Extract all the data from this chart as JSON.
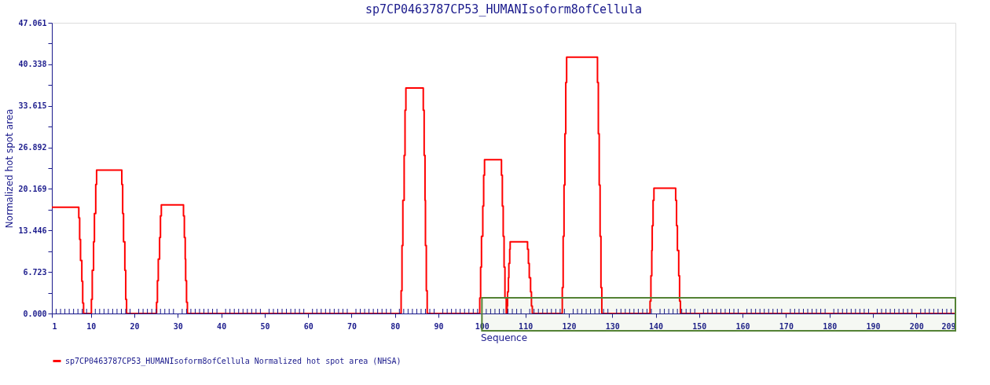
{
  "chart_data": {
    "type": "step",
    "title": "sp7CP0463787CP53_HUMANIsoform8ofCellula",
    "xlabel": "Sequence",
    "ylabel": "Normalized hot spot area",
    "series": [
      {
        "name": "sp7CP0463787CP53_HUMANIsoform8ofCellula Normalized hot spot area (NHSA)",
        "color": "#ff0000",
        "x": [
          1,
          7.2,
          7.4,
          7.6,
          7.9,
          8.1,
          8.3,
          10.1,
          10.3,
          10.6,
          10.8,
          11.1,
          11.3,
          17.1,
          17.3,
          17.5,
          17.8,
          18.0,
          18.2,
          25.1,
          25.3,
          25.5,
          25.8,
          26.0,
          26.2,
          31.3,
          31.5,
          31.7,
          31.8,
          32.0,
          32.2,
          81.4,
          81.6,
          81.8,
          82.1,
          82.3,
          82.5,
          86.5,
          86.7,
          86.9,
          87.0,
          87.2,
          87.4,
          99.5,
          99.7,
          99.9,
          100.2,
          100.4,
          100.6,
          104.5,
          104.7,
          104.9,
          105.1,
          105.3,
          105.6,
          105.8,
          105.9,
          106.1,
          106.2,
          106.4,
          106.5,
          110.5,
          110.7,
          110.9,
          111.2,
          111.4,
          111.6,
          118.5,
          118.7,
          118.9,
          119.1,
          119.3,
          119.5,
          126.6,
          126.8,
          127.0,
          127.2,
          127.4,
          127.6,
          138.7,
          138.9,
          139.1,
          139.2,
          139.4,
          139.6,
          144.6,
          144.8,
          145.0,
          145.3,
          145.5,
          145.7,
          209
        ],
        "values": [
          17.2,
          15.5,
          12.0,
          8.6,
          5.2,
          1.7,
          0,
          2.3,
          7.0,
          11.6,
          16.2,
          20.9,
          23.2,
          20.9,
          16.2,
          11.6,
          7.0,
          2.3,
          0,
          1.8,
          5.3,
          8.8,
          12.3,
          15.8,
          17.6,
          15.8,
          12.3,
          8.8,
          5.3,
          1.8,
          0,
          3.7,
          11.0,
          18.3,
          25.6,
          32.9,
          36.5,
          32.9,
          25.6,
          18.3,
          11.0,
          3.7,
          0,
          2.5,
          7.5,
          12.5,
          17.4,
          22.4,
          24.9,
          22.4,
          17.4,
          12.5,
          7.5,
          2.5,
          0,
          1.2,
          3.5,
          5.8,
          8.1,
          10.4,
          11.6,
          10.4,
          8.1,
          5.8,
          3.5,
          1.2,
          0,
          4.2,
          12.5,
          20.8,
          29.1,
          37.4,
          41.5,
          37.4,
          29.1,
          20.8,
          12.5,
          4.2,
          0,
          2.0,
          6.1,
          10.2,
          14.2,
          18.3,
          20.3,
          18.3,
          14.2,
          10.2,
          6.1,
          2.0,
          0,
          0
        ]
      }
    ],
    "xlim": [
      1,
      209
    ],
    "xticks": [
      1,
      {
        "value": 2,
        "label": null
      },
      {
        "value": 3,
        "label": null
      },
      {
        "value": 4,
        "label": null
      },
      {
        "value": 5,
        "label": null
      },
      {
        "value": 6,
        "label": null
      },
      {
        "value": 7,
        "label": null
      },
      {
        "value": 8,
        "label": null
      },
      {
        "value": 9,
        "label": null
      },
      10,
      {
        "value": 11,
        "label": null
      },
      {
        "value": 12,
        "label": null
      },
      {
        "value": 13,
        "label": null
      },
      {
        "value": 14,
        "label": null
      },
      {
        "value": 15,
        "label": null
      },
      {
        "value": 16,
        "label": null
      },
      {
        "value": 17,
        "label": null
      },
      {
        "value": 18,
        "label": null
      },
      {
        "value": 19,
        "label": null
      },
      20,
      {
        "value": 21,
        "label": null
      },
      {
        "value": 22,
        "label": null
      },
      {
        "value": 23,
        "label": null
      },
      {
        "value": 24,
        "label": null
      },
      {
        "value": 25,
        "label": null
      },
      {
        "value": 26,
        "label": null
      },
      {
        "value": 27,
        "label": null
      },
      {
        "value": 28,
        "label": null
      },
      {
        "value": 29,
        "label": null
      },
      30,
      {
        "value": 31,
        "label": null
      },
      {
        "value": 32,
        "label": null
      },
      {
        "value": 33,
        "label": null
      },
      {
        "value": 34,
        "label": null
      },
      {
        "value": 35,
        "label": null
      },
      {
        "value": 36,
        "label": null
      },
      {
        "value": 37,
        "label": null
      },
      {
        "value": 38,
        "label": null
      },
      {
        "value": 39,
        "label": null
      },
      40,
      {
        "value": 41,
        "label": null
      },
      {
        "value": 42,
        "label": null
      },
      {
        "value": 43,
        "label": null
      },
      {
        "value": 44,
        "label": null
      },
      {
        "value": 45,
        "label": null
      },
      {
        "value": 46,
        "label": null
      },
      {
        "value": 47,
        "label": null
      },
      {
        "value": 48,
        "label": null
      },
      {
        "value": 49,
        "label": null
      },
      50,
      {
        "value": 51,
        "label": null
      },
      {
        "value": 52,
        "label": null
      },
      {
        "value": 53,
        "label": null
      },
      {
        "value": 54,
        "label": null
      },
      {
        "value": 55,
        "label": null
      },
      {
        "value": 56,
        "label": null
      },
      {
        "value": 57,
        "label": null
      },
      {
        "value": 58,
        "label": null
      },
      {
        "value": 59,
        "label": null
      },
      60,
      {
        "value": 61,
        "label": null
      },
      {
        "value": 62,
        "label": null
      },
      {
        "value": 63,
        "label": null
      },
      {
        "value": 64,
        "label": null
      },
      {
        "value": 65,
        "label": null
      },
      {
        "value": 66,
        "label": null
      },
      {
        "value": 67,
        "label": null
      },
      {
        "value": 68,
        "label": null
      },
      {
        "value": 69,
        "label": null
      },
      70,
      {
        "value": 71,
        "label": null
      },
      {
        "value": 72,
        "label": null
      },
      {
        "value": 73,
        "label": null
      },
      {
        "value": 74,
        "label": null
      },
      {
        "value": 75,
        "label": null
      },
      {
        "value": 76,
        "label": null
      },
      {
        "value": 77,
        "label": null
      },
      {
        "value": 78,
        "label": null
      },
      {
        "value": 79,
        "label": null
      },
      80,
      {
        "value": 81,
        "label": null
      },
      {
        "value": 82,
        "label": null
      },
      {
        "value": 83,
        "label": null
      },
      {
        "value": 84,
        "label": null
      },
      {
        "value": 85,
        "label": null
      },
      {
        "value": 86,
        "label": null
      },
      {
        "value": 87,
        "label": null
      },
      {
        "value": 88,
        "label": null
      },
      {
        "value": 89,
        "label": null
      },
      90,
      {
        "value": 91,
        "label": null
      },
      {
        "value": 92,
        "label": null
      },
      {
        "value": 93,
        "label": null
      },
      {
        "value": 94,
        "label": null
      },
      {
        "value": 95,
        "label": null
      },
      {
        "value": 96,
        "label": null
      },
      {
        "value": 97,
        "label": null
      },
      {
        "value": 98,
        "label": null
      },
      {
        "value": 99,
        "label": null
      },
      100,
      {
        "value": 101,
        "label": null
      },
      {
        "value": 102,
        "label": null
      },
      {
        "value": 103,
        "label": null
      },
      {
        "value": 104,
        "label": null
      },
      {
        "value": 105,
        "label": null
      },
      {
        "value": 106,
        "label": null
      },
      {
        "value": 107,
        "label": null
      },
      {
        "value": 108,
        "label": null
      },
      {
        "value": 109,
        "label": null
      },
      110,
      {
        "value": 111,
        "label": null
      },
      {
        "value": 112,
        "label": null
      },
      {
        "value": 113,
        "label": null
      },
      {
        "value": 114,
        "label": null
      },
      {
        "value": 115,
        "label": null
      },
      {
        "value": 116,
        "label": null
      },
      {
        "value": 117,
        "label": null
      },
      {
        "value": 118,
        "label": null
      },
      {
        "value": 119,
        "label": null
      },
      120,
      {
        "value": 121,
        "label": null
      },
      {
        "value": 122,
        "label": null
      },
      {
        "value": 123,
        "label": null
      },
      {
        "value": 124,
        "label": null
      },
      {
        "value": 125,
        "label": null
      },
      {
        "value": 126,
        "label": null
      },
      {
        "value": 127,
        "label": null
      },
      {
        "value": 128,
        "label": null
      },
      {
        "value": 129,
        "label": null
      },
      130,
      {
        "value": 131,
        "label": null
      },
      {
        "value": 132,
        "label": null
      },
      {
        "value": 133,
        "label": null
      },
      {
        "value": 134,
        "label": null
      },
      {
        "value": 135,
        "label": null
      },
      {
        "value": 136,
        "label": null
      },
      {
        "value": 137,
        "label": null
      },
      {
        "value": 138,
        "label": null
      },
      {
        "value": 139,
        "label": null
      },
      140,
      {
        "value": 141,
        "label": null
      },
      {
        "value": 142,
        "label": null
      },
      {
        "value": 143,
        "label": null
      },
      {
        "value": 144,
        "label": null
      },
      {
        "value": 145,
        "label": null
      },
      {
        "value": 146,
        "label": null
      },
      {
        "value": 147,
        "label": null
      },
      {
        "value": 148,
        "label": null
      },
      {
        "value": 149,
        "label": null
      },
      150,
      {
        "value": 151,
        "label": null
      },
      {
        "value": 152,
        "label": null
      },
      {
        "value": 153,
        "label": null
      },
      {
        "value": 154,
        "label": null
      },
      {
        "value": 155,
        "label": null
      },
      {
        "value": 156,
        "label": null
      },
      {
        "value": 157,
        "label": null
      },
      {
        "value": 158,
        "label": null
      },
      {
        "value": 159,
        "label": null
      },
      160,
      {
        "value": 161,
        "label": null
      },
      {
        "value": 162,
        "label": null
      },
      {
        "value": 163,
        "label": null
      },
      {
        "value": 164,
        "label": null
      },
      {
        "value": 165,
        "label": null
      },
      {
        "value": 166,
        "label": null
      },
      {
        "value": 167,
        "label": null
      },
      {
        "value": 168,
        "label": null
      },
      {
        "value": 169,
        "label": null
      },
      170,
      {
        "value": 171,
        "label": null
      },
      {
        "value": 172,
        "label": null
      },
      {
        "value": 173,
        "label": null
      },
      {
        "value": 174,
        "label": null
      },
      {
        "value": 175,
        "label": null
      },
      {
        "value": 176,
        "label": null
      },
      {
        "value": 177,
        "label": null
      },
      {
        "value": 178,
        "label": null
      },
      {
        "value": 179,
        "label": null
      },
      180,
      {
        "value": 181,
        "label": null
      },
      {
        "value": 182,
        "label": null
      },
      {
        "value": 183,
        "label": null
      },
      {
        "value": 184,
        "label": null
      },
      {
        "value": 185,
        "label": null
      },
      {
        "value": 186,
        "label": null
      },
      {
        "value": 187,
        "label": null
      },
      {
        "value": 188,
        "label": null
      },
      {
        "value": 189,
        "label": null
      },
      190,
      {
        "value": 191,
        "label": null
      },
      {
        "value": 192,
        "label": null
      },
      {
        "value": 193,
        "label": null
      },
      {
        "value": 194,
        "label": null
      },
      {
        "value": 195,
        "label": null
      },
      {
        "value": 196,
        "label": null
      },
      {
        "value": 197,
        "label": null
      },
      {
        "value": 198,
        "label": null
      },
      {
        "value": 199,
        "label": null
      },
      200,
      {
        "value": 201,
        "label": null
      },
      {
        "value": 202,
        "label": null
      },
      {
        "value": 203,
        "label": null
      },
      {
        "value": 204,
        "label": null
      },
      {
        "value": 205,
        "label": null
      },
      {
        "value": 206,
        "label": null
      },
      {
        "value": 207,
        "label": null
      },
      {
        "value": 208,
        "label": null
      },
      209
    ],
    "ylim": [
      0,
      47.061
    ],
    "yticks": [
      {
        "value": 0,
        "label": "0.000"
      },
      {
        "value": 3.3615,
        "label": null
      },
      6.723,
      {
        "value": 10.0845,
        "label": null
      },
      13.446,
      {
        "value": 16.8075,
        "label": null
      },
      20.169,
      {
        "value": 23.5305,
        "label": null
      },
      26.892,
      {
        "value": 30.2535,
        "label": null
      },
      33.615,
      {
        "value": 36.9765,
        "label": null
      },
      40.338,
      {
        "value": 43.6995,
        "label": null
      },
      47.061
    ],
    "bands": [
      {
        "axis": "x",
        "from": 100,
        "to": 209,
        "color": "#548235"
      }
    ],
    "grid": false,
    "legend": "bottom"
  }
}
